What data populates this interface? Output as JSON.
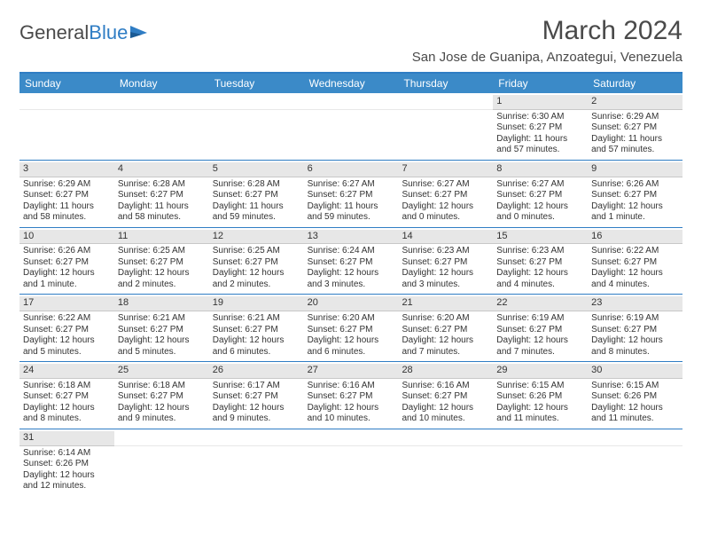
{
  "colors": {
    "header_bg": "#3b8ac8",
    "header_text": "#ffffff",
    "border": "#2f7dc4",
    "daynum_bg": "#e7e7e7",
    "text": "#333333",
    "logo_blue": "#2f7dc4",
    "logo_gray": "#4a4a4a"
  },
  "typography": {
    "month_title_size": 30,
    "location_size": 15,
    "header_size": 12,
    "daynum_size": 11,
    "body_size": 10
  },
  "logo": {
    "part1": "General",
    "part2": "Blue"
  },
  "title": "March 2024",
  "location": "San Jose de Guanipa, Anzoategui, Venezuela",
  "day_names": [
    "Sunday",
    "Monday",
    "Tuesday",
    "Wednesday",
    "Thursday",
    "Friday",
    "Saturday"
  ],
  "weeks": [
    [
      {
        "n": "",
        "empty": true
      },
      {
        "n": "",
        "empty": true
      },
      {
        "n": "",
        "empty": true
      },
      {
        "n": "",
        "empty": true
      },
      {
        "n": "",
        "empty": true
      },
      {
        "n": "1",
        "sr": "Sunrise: 6:30 AM",
        "ss": "Sunset: 6:27 PM",
        "dl": "Daylight: 11 hours and 57 minutes."
      },
      {
        "n": "2",
        "sr": "Sunrise: 6:29 AM",
        "ss": "Sunset: 6:27 PM",
        "dl": "Daylight: 11 hours and 57 minutes."
      }
    ],
    [
      {
        "n": "3",
        "sr": "Sunrise: 6:29 AM",
        "ss": "Sunset: 6:27 PM",
        "dl": "Daylight: 11 hours and 58 minutes."
      },
      {
        "n": "4",
        "sr": "Sunrise: 6:28 AM",
        "ss": "Sunset: 6:27 PM",
        "dl": "Daylight: 11 hours and 58 minutes."
      },
      {
        "n": "5",
        "sr": "Sunrise: 6:28 AM",
        "ss": "Sunset: 6:27 PM",
        "dl": "Daylight: 11 hours and 59 minutes."
      },
      {
        "n": "6",
        "sr": "Sunrise: 6:27 AM",
        "ss": "Sunset: 6:27 PM",
        "dl": "Daylight: 11 hours and 59 minutes."
      },
      {
        "n": "7",
        "sr": "Sunrise: 6:27 AM",
        "ss": "Sunset: 6:27 PM",
        "dl": "Daylight: 12 hours and 0 minutes."
      },
      {
        "n": "8",
        "sr": "Sunrise: 6:27 AM",
        "ss": "Sunset: 6:27 PM",
        "dl": "Daylight: 12 hours and 0 minutes."
      },
      {
        "n": "9",
        "sr": "Sunrise: 6:26 AM",
        "ss": "Sunset: 6:27 PM",
        "dl": "Daylight: 12 hours and 1 minute."
      }
    ],
    [
      {
        "n": "10",
        "sr": "Sunrise: 6:26 AM",
        "ss": "Sunset: 6:27 PM",
        "dl": "Daylight: 12 hours and 1 minute."
      },
      {
        "n": "11",
        "sr": "Sunrise: 6:25 AM",
        "ss": "Sunset: 6:27 PM",
        "dl": "Daylight: 12 hours and 2 minutes."
      },
      {
        "n": "12",
        "sr": "Sunrise: 6:25 AM",
        "ss": "Sunset: 6:27 PM",
        "dl": "Daylight: 12 hours and 2 minutes."
      },
      {
        "n": "13",
        "sr": "Sunrise: 6:24 AM",
        "ss": "Sunset: 6:27 PM",
        "dl": "Daylight: 12 hours and 3 minutes."
      },
      {
        "n": "14",
        "sr": "Sunrise: 6:23 AM",
        "ss": "Sunset: 6:27 PM",
        "dl": "Daylight: 12 hours and 3 minutes."
      },
      {
        "n": "15",
        "sr": "Sunrise: 6:23 AM",
        "ss": "Sunset: 6:27 PM",
        "dl": "Daylight: 12 hours and 4 minutes."
      },
      {
        "n": "16",
        "sr": "Sunrise: 6:22 AM",
        "ss": "Sunset: 6:27 PM",
        "dl": "Daylight: 12 hours and 4 minutes."
      }
    ],
    [
      {
        "n": "17",
        "sr": "Sunrise: 6:22 AM",
        "ss": "Sunset: 6:27 PM",
        "dl": "Daylight: 12 hours and 5 minutes."
      },
      {
        "n": "18",
        "sr": "Sunrise: 6:21 AM",
        "ss": "Sunset: 6:27 PM",
        "dl": "Daylight: 12 hours and 5 minutes."
      },
      {
        "n": "19",
        "sr": "Sunrise: 6:21 AM",
        "ss": "Sunset: 6:27 PM",
        "dl": "Daylight: 12 hours and 6 minutes."
      },
      {
        "n": "20",
        "sr": "Sunrise: 6:20 AM",
        "ss": "Sunset: 6:27 PM",
        "dl": "Daylight: 12 hours and 6 minutes."
      },
      {
        "n": "21",
        "sr": "Sunrise: 6:20 AM",
        "ss": "Sunset: 6:27 PM",
        "dl": "Daylight: 12 hours and 7 minutes."
      },
      {
        "n": "22",
        "sr": "Sunrise: 6:19 AM",
        "ss": "Sunset: 6:27 PM",
        "dl": "Daylight: 12 hours and 7 minutes."
      },
      {
        "n": "23",
        "sr": "Sunrise: 6:19 AM",
        "ss": "Sunset: 6:27 PM",
        "dl": "Daylight: 12 hours and 8 minutes."
      }
    ],
    [
      {
        "n": "24",
        "sr": "Sunrise: 6:18 AM",
        "ss": "Sunset: 6:27 PM",
        "dl": "Daylight: 12 hours and 8 minutes."
      },
      {
        "n": "25",
        "sr": "Sunrise: 6:18 AM",
        "ss": "Sunset: 6:27 PM",
        "dl": "Daylight: 12 hours and 9 minutes."
      },
      {
        "n": "26",
        "sr": "Sunrise: 6:17 AM",
        "ss": "Sunset: 6:27 PM",
        "dl": "Daylight: 12 hours and 9 minutes."
      },
      {
        "n": "27",
        "sr": "Sunrise: 6:16 AM",
        "ss": "Sunset: 6:27 PM",
        "dl": "Daylight: 12 hours and 10 minutes."
      },
      {
        "n": "28",
        "sr": "Sunrise: 6:16 AM",
        "ss": "Sunset: 6:27 PM",
        "dl": "Daylight: 12 hours and 10 minutes."
      },
      {
        "n": "29",
        "sr": "Sunrise: 6:15 AM",
        "ss": "Sunset: 6:26 PM",
        "dl": "Daylight: 12 hours and 11 minutes."
      },
      {
        "n": "30",
        "sr": "Sunrise: 6:15 AM",
        "ss": "Sunset: 6:26 PM",
        "dl": "Daylight: 12 hours and 11 minutes."
      }
    ],
    [
      {
        "n": "31",
        "sr": "Sunrise: 6:14 AM",
        "ss": "Sunset: 6:26 PM",
        "dl": "Daylight: 12 hours and 12 minutes."
      },
      {
        "n": "",
        "empty": true
      },
      {
        "n": "",
        "empty": true
      },
      {
        "n": "",
        "empty": true
      },
      {
        "n": "",
        "empty": true
      },
      {
        "n": "",
        "empty": true
      },
      {
        "n": "",
        "empty": true
      }
    ]
  ]
}
